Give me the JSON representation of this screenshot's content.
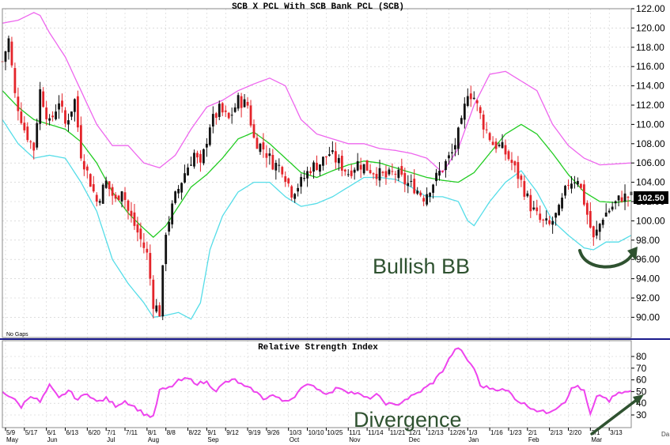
{
  "colors": {
    "up": "#111111",
    "down": "#e4242a",
    "middle_band": "#22cc22",
    "upper_band": "#ee66ee",
    "lower_band": "#55dde8",
    "rsi_line": "#ee44ee",
    "annotation": "#2f5230",
    "separator": "#1a1a8c",
    "grid": "#c7c7c7",
    "last_price_box": "#000000"
  },
  "chart_data": [
    {
      "type": "candlestick",
      "title": "SCB X PCL With SCB Bank PCL (SCB)",
      "note": "No Gaps",
      "last_price_label": "102.50",
      "ylim": [
        89,
        123
      ],
      "ytick_labels": [
        "122.00",
        "120.00",
        "118.00",
        "116.00",
        "114.00",
        "112.00",
        "110.00",
        "108.00",
        "106.00",
        "104.00",
        "102.00",
        "100.00",
        "98.00",
        "96.00",
        "94.00",
        "92.00",
        "90.00"
      ],
      "annotations": [
        "Bullish BB"
      ],
      "middle_band": [
        [
          0,
          113.5
        ],
        [
          5,
          111.8
        ],
        [
          10,
          110.5
        ],
        [
          15,
          110.0
        ],
        [
          20,
          109.5
        ],
        [
          25,
          108.2
        ],
        [
          30,
          106.0
        ],
        [
          35,
          103.0
        ],
        [
          40,
          100.8
        ],
        [
          44,
          99.5
        ],
        [
          48,
          98.3
        ],
        [
          52,
          99.5
        ],
        [
          56,
          101.5
        ],
        [
          60,
          103.5
        ],
        [
          65,
          104.8
        ],
        [
          70,
          106.5
        ],
        [
          75,
          108.5
        ],
        [
          80,
          109.2
        ],
        [
          85,
          108.0
        ],
        [
          90,
          106.5
        ],
        [
          95,
          105.0
        ],
        [
          100,
          104.5
        ],
        [
          105,
          105.2
        ],
        [
          110,
          105.8
        ],
        [
          115,
          106.2
        ],
        [
          120,
          106.0
        ],
        [
          125,
          105.5
        ],
        [
          130,
          105.0
        ],
        [
          135,
          104.5
        ],
        [
          140,
          104.2
        ],
        [
          145,
          104.0
        ],
        [
          150,
          105.0
        ],
        [
          155,
          107.0
        ],
        [
          160,
          109.0
        ],
        [
          165,
          110.0
        ],
        [
          170,
          109.0
        ],
        [
          175,
          107.0
        ],
        [
          180,
          104.8
        ],
        [
          185,
          103.0
        ],
        [
          190,
          102.0
        ],
        [
          195,
          101.9
        ],
        [
          200,
          102.1
        ]
      ],
      "upper_band": [
        [
          0,
          120.5
        ],
        [
          5,
          120.8
        ],
        [
          10,
          121.6
        ],
        [
          12,
          121.3
        ],
        [
          15,
          119.5
        ],
        [
          20,
          117.0
        ],
        [
          25,
          113.5
        ],
        [
          30,
          110.0
        ],
        [
          35,
          107.8
        ],
        [
          40,
          107.8
        ],
        [
          45,
          106.0
        ],
        [
          50,
          105.5
        ],
        [
          55,
          106.8
        ],
        [
          60,
          109.5
        ],
        [
          65,
          111.8
        ],
        [
          70,
          112.5
        ],
        [
          75,
          113.5
        ],
        [
          80,
          114.2
        ],
        [
          85,
          114.8
        ],
        [
          90,
          114.0
        ],
        [
          95,
          110.5
        ],
        [
          100,
          109.0
        ],
        [
          105,
          108.5
        ],
        [
          110,
          108.0
        ],
        [
          115,
          108.0
        ],
        [
          120,
          107.5
        ],
        [
          125,
          107.3
        ],
        [
          130,
          107.0
        ],
        [
          135,
          106.5
        ],
        [
          140,
          105.0
        ],
        [
          145,
          107.5
        ],
        [
          150,
          112.0
        ],
        [
          155,
          115.2
        ],
        [
          160,
          115.5
        ],
        [
          165,
          114.5
        ],
        [
          170,
          113.5
        ],
        [
          175,
          110.0
        ],
        [
          180,
          107.8
        ],
        [
          185,
          106.5
        ],
        [
          190,
          105.8
        ],
        [
          195,
          105.9
        ],
        [
          200,
          106.0
        ]
      ],
      "lower_band": [
        [
          0,
          110.5
        ],
        [
          5,
          108.0
        ],
        [
          10,
          106.5
        ],
        [
          15,
          106.8
        ],
        [
          20,
          106.5
        ],
        [
          25,
          104.0
        ],
        [
          30,
          101.0
        ],
        [
          35,
          96.0
        ],
        [
          40,
          93.5
        ],
        [
          45,
          91.5
        ],
        [
          48,
          90.0
        ],
        [
          52,
          90.2
        ],
        [
          56,
          90.5
        ],
        [
          60,
          89.8
        ],
        [
          63,
          91.5
        ],
        [
          66,
          97.0
        ],
        [
          70,
          100.5
        ],
        [
          75,
          103.0
        ],
        [
          80,
          104.0
        ],
        [
          85,
          104.0
        ],
        [
          90,
          102.5
        ],
        [
          95,
          101.5
        ],
        [
          100,
          101.8
        ],
        [
          105,
          102.5
        ],
        [
          110,
          103.5
        ],
        [
          115,
          104.5
        ],
        [
          120,
          104.5
        ],
        [
          125,
          104.3
        ],
        [
          130,
          103.5
        ],
        [
          135,
          102.5
        ],
        [
          140,
          102.5
        ],
        [
          145,
          102.0
        ],
        [
          148,
          100.0
        ],
        [
          150,
          99.5
        ],
        [
          155,
          102.0
        ],
        [
          160,
          104.0
        ],
        [
          165,
          105.2
        ],
        [
          170,
          103.0
        ],
        [
          175,
          100.0
        ],
        [
          180,
          98.5
        ],
        [
          185,
          97.2
        ],
        [
          188,
          97.0
        ],
        [
          192,
          97.8
        ],
        [
          196,
          97.8
        ],
        [
          200,
          98.5
        ]
      ],
      "close_path": [
        [
          0,
          116.5
        ],
        [
          2,
          118.8
        ],
        [
          4,
          113.0
        ],
        [
          7,
          109.5
        ],
        [
          10,
          107.5
        ],
        [
          12,
          113.5
        ],
        [
          15,
          110.0
        ],
        [
          18,
          112.5
        ],
        [
          20,
          110.0
        ],
        [
          23,
          112.5
        ],
        [
          25,
          107.0
        ],
        [
          28,
          104.0
        ],
        [
          30,
          102.0
        ],
        [
          33,
          104.0
        ],
        [
          36,
          102.0
        ],
        [
          38,
          103.5
        ],
        [
          40,
          101.0
        ],
        [
          43,
          98.8
        ],
        [
          46,
          96.5
        ],
        [
          48,
          91.5
        ],
        [
          50,
          90.5
        ],
        [
          52,
          99.0
        ],
        [
          55,
          102.5
        ],
        [
          58,
          105.0
        ],
        [
          61,
          107.0
        ],
        [
          63,
          105.5
        ],
        [
          66,
          110.0
        ],
        [
          69,
          111.5
        ],
        [
          72,
          110.5
        ],
        [
          75,
          112.5
        ],
        [
          78,
          112.0
        ],
        [
          80,
          108.5
        ],
        [
          83,
          107.5
        ],
        [
          86,
          106.0
        ],
        [
          89,
          105.5
        ],
        [
          92,
          103.0
        ],
        [
          95,
          104.0
        ],
        [
          98,
          105.5
        ],
        [
          101,
          106.0
        ],
        [
          104,
          107.0
        ],
        [
          107,
          106.0
        ],
        [
          110,
          105.0
        ],
        [
          113,
          106.0
        ],
        [
          116,
          105.5
        ],
        [
          119,
          105.0
        ],
        [
          122,
          104.5
        ],
        [
          125,
          105.0
        ],
        [
          128,
          104.0
        ],
        [
          131,
          103.5
        ],
        [
          134,
          102.5
        ],
        [
          137,
          104.0
        ],
        [
          140,
          105.5
        ],
        [
          143,
          107.0
        ],
        [
          146,
          110.0
        ],
        [
          148,
          113.5
        ],
        [
          150,
          112.8
        ],
        [
          153,
          110.0
        ],
        [
          156,
          108.0
        ],
        [
          159,
          107.5
        ],
        [
          162,
          106.0
        ],
        [
          165,
          104.0
        ],
        [
          168,
          101.5
        ],
        [
          171,
          100.0
        ],
        [
          174,
          99.5
        ],
        [
          177,
          101.0
        ],
        [
          180,
          104.0
        ],
        [
          183,
          104.5
        ],
        [
          185,
          102.0
        ],
        [
          188,
          98.0
        ],
        [
          191,
          100.5
        ],
        [
          194,
          101.5
        ],
        [
          197,
          102.5
        ],
        [
          200,
          102.5
        ]
      ]
    },
    {
      "type": "line",
      "title": "Relative Strength Index",
      "ylim": [
        22,
        90
      ],
      "ytick_labels": [
        "80",
        "70",
        "60",
        "50",
        "40",
        "30"
      ],
      "annotations": [
        "Divergence"
      ],
      "series": [
        {
          "values": [
            [
              0,
              50
            ],
            [
              3,
              45
            ],
            [
              6,
              37
            ],
            [
              9,
              47
            ],
            [
              12,
              41
            ],
            [
              15,
              55
            ],
            [
              18,
              44
            ],
            [
              21,
              51
            ],
            [
              24,
              43
            ],
            [
              27,
              49
            ],
            [
              30,
              41
            ],
            [
              33,
              44
            ],
            [
              36,
              38
            ],
            [
              39,
              42
            ],
            [
              42,
              37
            ],
            [
              45,
              31
            ],
            [
              48,
              28
            ],
            [
              50,
              51
            ],
            [
              53,
              53
            ],
            [
              56,
              59
            ],
            [
              59,
              61
            ],
            [
              62,
              57
            ],
            [
              65,
              58
            ],
            [
              68,
              51
            ],
            [
              71,
              58
            ],
            [
              74,
              60
            ],
            [
              77,
              54
            ],
            [
              80,
              51
            ],
            [
              83,
              44
            ],
            [
              86,
              47
            ],
            [
              89,
              42
            ],
            [
              92,
              44
            ],
            [
              95,
              52
            ],
            [
              98,
              57
            ],
            [
              101,
              51
            ],
            [
              104,
              48
            ],
            [
              107,
              54
            ],
            [
              110,
              50
            ],
            [
              113,
              48
            ],
            [
              116,
              44
            ],
            [
              119,
              47
            ],
            [
              122,
              40
            ],
            [
              125,
              38
            ],
            [
              128,
              43
            ],
            [
              131,
              47
            ],
            [
              134,
              52
            ],
            [
              137,
              58
            ],
            [
              140,
              68
            ],
            [
              143,
              82
            ],
            [
              145,
              88
            ],
            [
              147,
              80
            ],
            [
              150,
              70
            ],
            [
              152,
              55
            ],
            [
              155,
              53
            ],
            [
              158,
              52
            ],
            [
              161,
              50
            ],
            [
              164,
              42
            ],
            [
              167,
              38
            ],
            [
              170,
              34
            ],
            [
              173,
              32
            ],
            [
              176,
              36
            ],
            [
              179,
              42
            ],
            [
              181,
              52
            ],
            [
              183,
              55
            ],
            [
              185,
              50
            ],
            [
              187,
              30
            ],
            [
              189,
              45
            ],
            [
              191,
              46
            ],
            [
              193,
              42
            ],
            [
              195,
              47
            ],
            [
              197,
              49
            ],
            [
              200,
              50
            ]
          ]
        }
      ]
    },
    {
      "type": "axis",
      "ticks": [
        "5/9",
        "5/17",
        "6/1",
        "6/13",
        "6/20",
        "7/1",
        "7/11",
        "8/1",
        "8/8",
        "8/22",
        "9/1",
        "9/12",
        "9/19",
        "9/26",
        "10/3",
        "10/10",
        "10/25",
        "11/1",
        "11/14",
        "11/21",
        "12/1",
        "12/13",
        "12/26",
        "1/3",
        "1/16",
        "1/23",
        "2/1",
        "2/13",
        "2/20",
        "3/1",
        "3/13"
      ],
      "months": [
        "May",
        "Jun",
        "Jul",
        "Aug",
        "Sep",
        "Oct",
        "Nov",
        "Dec",
        "Jan",
        "Feb",
        "Mar"
      ],
      "corner_label": "Da"
    }
  ]
}
